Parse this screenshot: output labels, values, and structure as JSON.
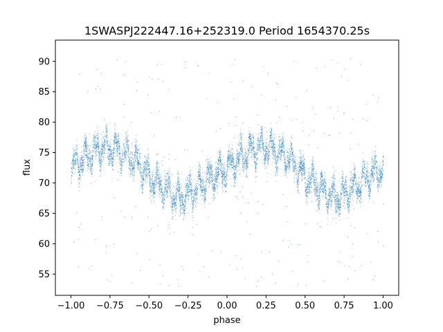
{
  "chart_data": {
    "type": "scatter",
    "title": "1SWASPJ222447.16+252319.0 Period 1654370.25s",
    "xlabel": "phase",
    "ylabel": "flux",
    "xlim": [
      -1.1,
      1.1
    ],
    "ylim": [
      51.5,
      93.5
    ],
    "xticks": [
      -1.0,
      -0.75,
      -0.5,
      -0.25,
      0.0,
      0.25,
      0.5,
      0.75,
      1.0
    ],
    "xtick_labels": [
      "−1.00",
      "−0.75",
      "−0.50",
      "−0.25",
      "0.00",
      "0.25",
      "0.50",
      "0.75",
      "1.00"
    ],
    "yticks": [
      55,
      60,
      65,
      70,
      75,
      80,
      85,
      90
    ],
    "ytick_labels": [
      "55",
      "60",
      "65",
      "70",
      "75",
      "80",
      "85",
      "90"
    ],
    "grid": false,
    "point_color": "#1f77b4",
    "trend": {
      "x": [
        -1.0,
        -0.9,
        -0.8,
        -0.7,
        -0.6,
        -0.5,
        -0.4,
        -0.3,
        -0.2,
        -0.1,
        0.0,
        0.1,
        0.2,
        0.3,
        0.4,
        0.5,
        0.6,
        0.7,
        0.8,
        0.9,
        1.0
      ],
      "y": [
        72.5,
        74.5,
        76.0,
        75.5,
        74.0,
        71.0,
        69.0,
        67.5,
        69.0,
        71.0,
        72.5,
        74.5,
        76.0,
        75.5,
        74.0,
        71.0,
        69.0,
        67.5,
        69.0,
        71.0,
        72.5
      ]
    }
  }
}
